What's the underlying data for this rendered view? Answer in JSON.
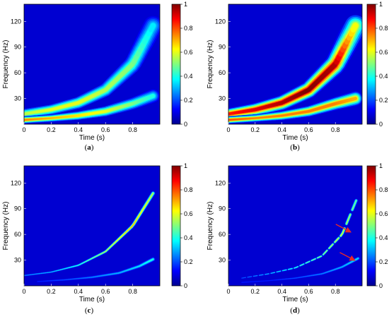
{
  "chart_data": [
    {
      "type": "heatmap",
      "panel_label": "a",
      "xlabel": "Time (s)",
      "ylabel": "Frequency (Hz)",
      "xlim": [
        0,
        1
      ],
      "ylim": [
        0,
        140
      ],
      "xticks": [
        "0",
        "0.2",
        "0.4",
        "0.6",
        "0.8"
      ],
      "xtick_values": [
        0,
        0.2,
        0.4,
        0.6,
        0.8
      ],
      "yticks": [
        "30",
        "60",
        "90",
        "120"
      ],
      "ytick_values": [
        30,
        60,
        90,
        120
      ],
      "colorbar_ticks": [
        "0",
        "0.2",
        "0.4",
        "0.6",
        "0.8",
        "1"
      ],
      "clim": [
        0,
        1
      ],
      "ridges": [
        {
          "name": "",
          "t": [
            0,
            0.2,
            0.4,
            0.6,
            0.8,
            0.95
          ],
          "f": [
            12,
            17,
            25,
            40,
            70,
            115
          ],
          "amp": [
            0.55,
            0.6,
            0.6,
            0.55,
            0.5,
            0.35
          ],
          "bw": [
            6,
            6,
            7,
            8,
            10,
            12
          ]
        },
        {
          "name": "",
          "t": [
            0,
            0.2,
            0.4,
            0.6,
            0.8,
            0.95
          ],
          "f": [
            5,
            7,
            10,
            15,
            24,
            33
          ],
          "amp": [
            0.75,
            0.7,
            0.65,
            0.6,
            0.5,
            0.4
          ],
          "bw": [
            4,
            4,
            5,
            6,
            7,
            8
          ]
        }
      ]
    },
    {
      "type": "heatmap",
      "panel_label": "b",
      "xlabel": "Time (s)",
      "ylabel": "Frequency (Hz)",
      "xlim": [
        0,
        1
      ],
      "ylim": [
        0,
        140
      ],
      "xticks": [
        "0",
        "0.2",
        "0.4",
        "0.6",
        "0.8"
      ],
      "xtick_values": [
        0,
        0.2,
        0.4,
        0.6,
        0.8
      ],
      "yticks": [
        "30",
        "60",
        "90",
        "120"
      ],
      "ytick_values": [
        30,
        60,
        90,
        120
      ],
      "colorbar_ticks": [
        "0",
        "0.2",
        "0.4",
        "0.6",
        "0.8",
        "1"
      ],
      "clim": [
        0,
        1
      ],
      "ridges": [
        {
          "name": "",
          "t": [
            0,
            0.2,
            0.4,
            0.6,
            0.8,
            0.95
          ],
          "f": [
            12,
            17,
            25,
            40,
            70,
            115
          ],
          "amp": [
            0.85,
            0.9,
            0.95,
            1.0,
            0.95,
            0.6
          ],
          "bw": [
            6,
            7,
            8,
            9,
            11,
            13
          ]
        },
        {
          "name": "",
          "t": [
            0,
            0.2,
            0.4,
            0.6,
            0.8,
            0.95
          ],
          "f": [
            5,
            7,
            10,
            15,
            24,
            30
          ],
          "amp": [
            0.8,
            0.75,
            0.75,
            0.75,
            0.75,
            0.7
          ],
          "bw": [
            4,
            4,
            5,
            6,
            7,
            8
          ]
        }
      ]
    },
    {
      "type": "heatmap",
      "panel_label": "c",
      "xlabel": "Time (s)",
      "ylabel": "Frequency (Hz)",
      "xlim": [
        0,
        1
      ],
      "ylim": [
        0,
        140
      ],
      "xticks": [
        "0",
        "0.2",
        "0.4",
        "0.6",
        "0.8"
      ],
      "xtick_values": [
        0,
        0.2,
        0.4,
        0.6,
        0.8
      ],
      "yticks": [
        "30",
        "60",
        "90",
        "120"
      ],
      "ytick_values": [
        30,
        60,
        90,
        120
      ],
      "colorbar_ticks": [
        "0",
        "0.2",
        "0.4",
        "0.6",
        "0.8",
        "1"
      ],
      "clim": [
        0,
        1
      ],
      "ridges": [
        {
          "name": "",
          "t": [
            0,
            0.2,
            0.4,
            0.6,
            0.8,
            0.95
          ],
          "f": [
            12,
            16,
            24,
            40,
            70,
            108
          ],
          "amp": [
            0.25,
            0.3,
            0.4,
            0.55,
            0.7,
            0.55
          ],
          "bw": [
            1.2,
            1.2,
            1.4,
            1.6,
            2,
            2.5
          ]
        },
        {
          "name": "",
          "t": [
            0.1,
            0.3,
            0.5,
            0.7,
            0.85,
            0.95
          ],
          "f": [
            5,
            7,
            10,
            15,
            23,
            31
          ],
          "amp": [
            0.15,
            0.2,
            0.25,
            0.3,
            0.35,
            0.4
          ],
          "bw": [
            1.5,
            1.5,
            1.8,
            2,
            2.3,
            2.6
          ]
        }
      ]
    },
    {
      "type": "heatmap",
      "panel_label": "d",
      "xlabel": "Time (s)",
      "ylabel": "Frequency (Hz)",
      "xlim": [
        0,
        1
      ],
      "ylim": [
        0,
        140
      ],
      "xticks": [
        "0",
        "0.2",
        "0.4",
        "0.6",
        "0.8"
      ],
      "xtick_values": [
        0,
        0.2,
        0.4,
        0.6,
        0.8
      ],
      "yticks": [
        "30",
        "60",
        "90",
        "120"
      ],
      "ytick_values": [
        30,
        60,
        90,
        120
      ],
      "colorbar_ticks": [
        "0",
        "0.2",
        "0.4",
        "0.6",
        "0.8",
        "1"
      ],
      "clim": [
        0,
        1
      ],
      "ridges": [
        {
          "name": "",
          "t": [
            0.1,
            0.3,
            0.5,
            0.7,
            0.85,
            0.97
          ],
          "f": [
            9,
            14,
            21,
            35,
            60,
            105
          ],
          "amp": [
            0.2,
            0.3,
            0.4,
            0.5,
            0.6,
            0.45
          ],
          "bw": [
            1,
            1,
            1.2,
            1.4,
            1.8,
            2.2
          ],
          "dashed": true
        },
        {
          "name": "",
          "t": [
            0.1,
            0.3,
            0.5,
            0.7,
            0.85,
            0.97
          ],
          "f": [
            4,
            6,
            9,
            14,
            22,
            32
          ],
          "amp": [
            0.15,
            0.15,
            0.2,
            0.25,
            0.3,
            0.35
          ],
          "bw": [
            1.2,
            1.2,
            1.4,
            1.6,
            1.9,
            2.2
          ]
        }
      ],
      "annotations": [
        {
          "type": "arrow",
          "color": "#e8282a",
          "points_to": {
            "t": 0.93,
            "f": 62
          }
        },
        {
          "type": "arrow",
          "color": "#e8282a",
          "points_to": {
            "t": 0.96,
            "f": 29
          }
        }
      ]
    }
  ]
}
